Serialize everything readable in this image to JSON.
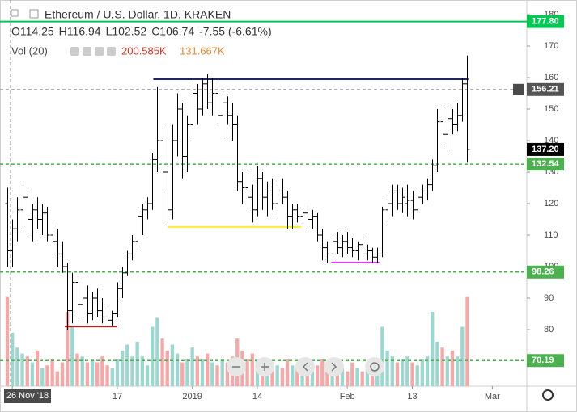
{
  "chart_data": {
    "type": "ohlc",
    "title": "Ethereum / U.S. Dollar, 1D, KRAKEN",
    "ohlc_header": [
      "O114.25",
      "H116.94",
      "L102.52",
      "C106.74",
      "-7.55 (-6.61%)"
    ],
    "volume_header": [
      "Vol (20)",
      "200.585K",
      "131.667K"
    ],
    "open": [
      120,
      105,
      112,
      118,
      122,
      115,
      118,
      115,
      117,
      110,
      108,
      104,
      100,
      86,
      95,
      88,
      90,
      85,
      90,
      86,
      84,
      83,
      85,
      93,
      98,
      104,
      108,
      116,
      118,
      120,
      134,
      140,
      130,
      118,
      140,
      150,
      135,
      145,
      155,
      150,
      158,
      152,
      155,
      148,
      152,
      148,
      145,
      127,
      125,
      122,
      118,
      128,
      122,
      124,
      120,
      124,
      122,
      116,
      118,
      116,
      117,
      115,
      116,
      110,
      106,
      104,
      108,
      106,
      108,
      106,
      105,
      107,
      104,
      105,
      103,
      104,
      118,
      120,
      124,
      120,
      120,
      121,
      118,
      122,
      124,
      126,
      132,
      146,
      142,
      147,
      145,
      148,
      158
    ],
    "high": [
      125,
      115,
      122,
      126,
      124,
      120,
      122,
      120,
      119,
      114,
      112,
      108,
      101,
      98,
      97,
      96,
      94,
      92,
      93,
      90,
      88,
      86,
      95,
      100,
      105,
      110,
      118,
      120,
      122,
      136,
      157,
      145,
      140,
      145,
      155,
      152,
      148,
      160,
      158,
      160,
      161,
      160,
      159,
      155,
      154,
      152,
      148,
      130,
      130,
      126,
      132,
      130,
      127,
      128,
      126,
      128,
      124,
      120,
      120,
      118,
      119,
      118,
      117,
      112,
      108,
      110,
      111,
      110,
      111,
      109,
      108,
      109,
      107,
      106,
      106,
      119,
      122,
      126,
      126,
      125,
      126,
      124,
      124,
      126,
      128,
      134,
      150,
      150,
      150,
      150,
      152,
      160,
      167
    ],
    "low": [
      100,
      100,
      108,
      112,
      110,
      108,
      112,
      110,
      108,
      104,
      100,
      98,
      80,
      82,
      84,
      83,
      82,
      83,
      84,
      82,
      81,
      81,
      84,
      90,
      97,
      102,
      106,
      110,
      115,
      118,
      130,
      125,
      113,
      115,
      135,
      128,
      130,
      140,
      145,
      148,
      150,
      148,
      145,
      140,
      145,
      140,
      124,
      120,
      118,
      114,
      116,
      118,
      116,
      118,
      115,
      120,
      112,
      112,
      114,
      113,
      112,
      112,
      108,
      102,
      101,
      102,
      104,
      103,
      104,
      103,
      102,
      103,
      102,
      101,
      101,
      103,
      114,
      116,
      118,
      117,
      116,
      115,
      117,
      120,
      121,
      124,
      130,
      138,
      136,
      142,
      143,
      146,
      133
    ],
    "close": [
      105,
      112,
      118,
      122,
      115,
      118,
      115,
      117,
      110,
      108,
      104,
      100,
      86,
      95,
      88,
      90,
      85,
      90,
      86,
      84,
      83,
      85,
      93,
      98,
      104,
      108,
      116,
      118,
      120,
      134,
      140,
      130,
      118,
      140,
      150,
      135,
      145,
      155,
      150,
      158,
      152,
      155,
      148,
      152,
      148,
      145,
      127,
      125,
      122,
      118,
      128,
      122,
      124,
      120,
      124,
      122,
      116,
      118,
      116,
      117,
      115,
      116,
      110,
      106,
      104,
      108,
      106,
      108,
      106,
      105,
      107,
      104,
      105,
      103,
      104,
      118,
      120,
      124,
      120,
      122,
      121,
      118,
      122,
      124,
      126,
      132,
      146,
      142,
      147,
      145,
      148,
      158,
      137.2
    ],
    "volume": [
      300,
      180,
      130,
      110,
      100,
      80,
      120,
      60,
      70,
      90,
      50,
      80,
      250,
      200,
      110,
      100,
      80,
      90,
      80,
      100,
      70,
      60,
      90,
      120,
      140,
      100,
      150,
      100,
      70,
      200,
      230,
      160,
      120,
      140,
      110,
      80,
      90,
      130,
      100,
      90,
      110,
      80,
      70,
      90,
      80,
      100,
      160,
      120,
      90,
      110,
      90,
      80,
      60,
      80,
      70,
      60,
      90,
      70,
      60,
      50,
      60,
      50,
      70,
      90,
      60,
      80,
      70,
      60,
      50,
      80,
      60,
      50,
      70,
      60,
      80,
      200,
      120,
      100,
      80,
      90,
      100,
      80,
      70,
      90,
      100,
      250,
      150,
      130,
      100,
      120,
      100,
      200,
      300
    ],
    "up_color": "#000000",
    "volume_up_color": "#9fd6cf",
    "volume_down_color": "#f2a9a9",
    "vlim": [
      0,
      1300
    ],
    "ylim": [
      62.05,
      184.62
    ],
    "yticks": [
      80,
      90,
      100,
      110,
      120,
      130,
      140,
      150,
      160,
      170,
      180
    ],
    "xlim": [
      -1.46,
      103.9
    ],
    "xticks": [
      {
        "value": 1,
        "label": "26 Nov '18"
      },
      {
        "value": 22,
        "label": "17"
      },
      {
        "value": 37,
        "label": "2019"
      },
      {
        "value": 50,
        "label": "14"
      },
      {
        "value": 68,
        "label": "Feb"
      },
      {
        "value": 81,
        "label": "13"
      },
      {
        "value": 97,
        "label": "Mar"
      }
    ],
    "levels": [
      {
        "value": 177.8,
        "label": "177.80",
        "color": "#00c853",
        "style": "solid"
      },
      {
        "value": 156.21,
        "label": "156.21",
        "color": "#555555",
        "style": "cursor"
      },
      {
        "value": 137.2,
        "label": "137.20",
        "color": "#000000",
        "style": "last"
      },
      {
        "value": 132.54,
        "label": "132.54",
        "color": "#4caf50",
        "style": "dashed"
      },
      {
        "value": 98.26,
        "label": "98.26",
        "color": "#4caf50",
        "style": "dashed"
      },
      {
        "value": 70.19,
        "label": "70.19",
        "color": "#4caf50",
        "style": "dashed"
      }
    ],
    "segments": [
      {
        "value": 159.5,
        "from": 29.2,
        "to": 92.2,
        "color": "#1a237e"
      },
      {
        "value": 112.6,
        "from": 32.1,
        "to": 58.8,
        "color": "#ffeb3b"
      },
      {
        "value": 101.3,
        "from": 64.8,
        "to": 74.4,
        "color": "#e040fb"
      },
      {
        "value": 81,
        "from": 11.5,
        "to": 22,
        "color": "#b71c1c"
      }
    ]
  }
}
